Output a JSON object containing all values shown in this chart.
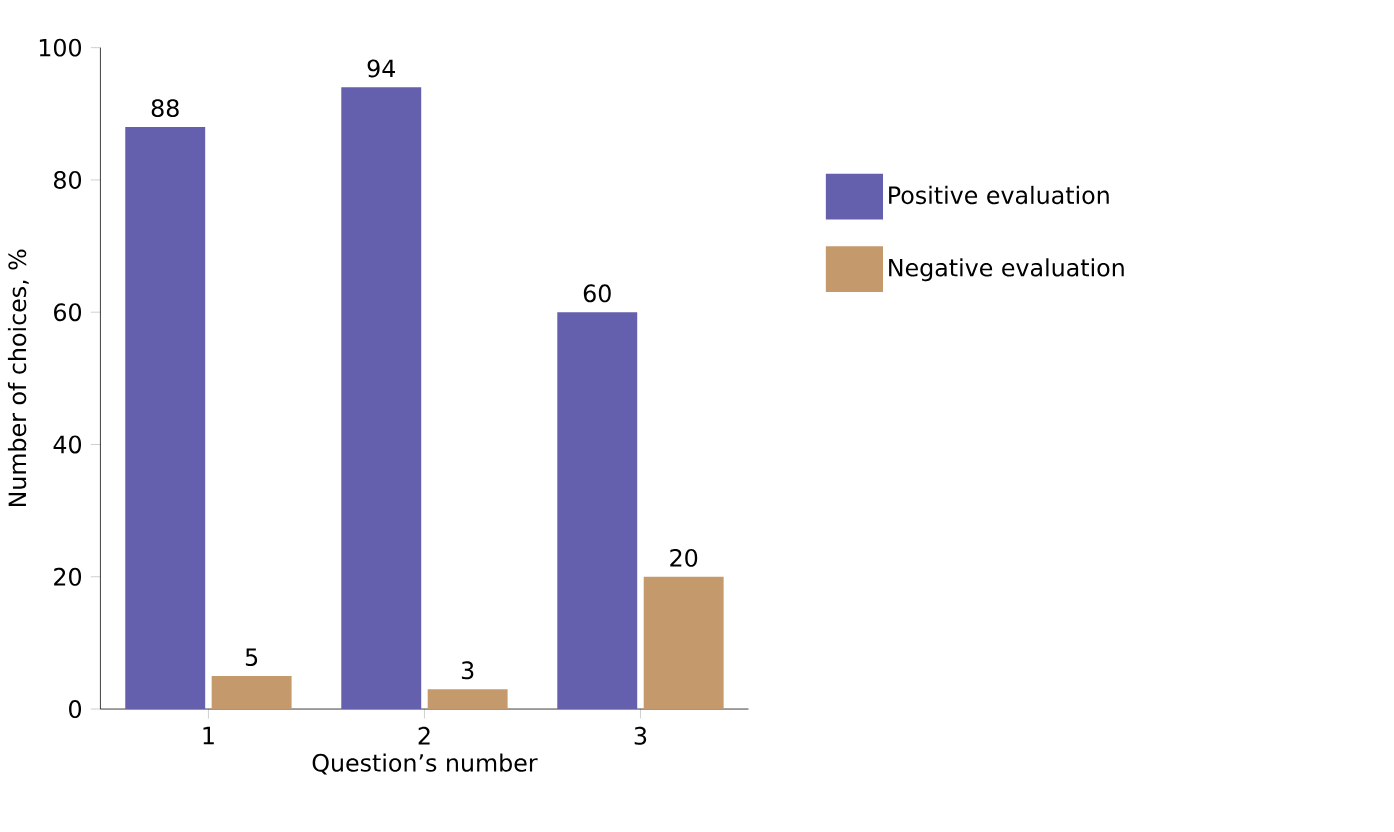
{
  "chart_data": {
    "type": "bar",
    "xlabel": "Question’s number",
    "ylabel": "Number of choices, %",
    "categories": [
      "1",
      "2",
      "3"
    ],
    "series": [
      {
        "name": "Positive evaluation",
        "color": "#6560ad",
        "values": [
          88,
          94,
          60
        ]
      },
      {
        "name": "Negative evaluation",
        "color": "#c49a6c",
        "values": [
          5,
          3,
          20
        ]
      }
    ],
    "ylim": [
      0,
      100
    ],
    "yticks": [
      0,
      20,
      40,
      60,
      80,
      100
    ],
    "data_labels": true,
    "legend": "right"
  }
}
